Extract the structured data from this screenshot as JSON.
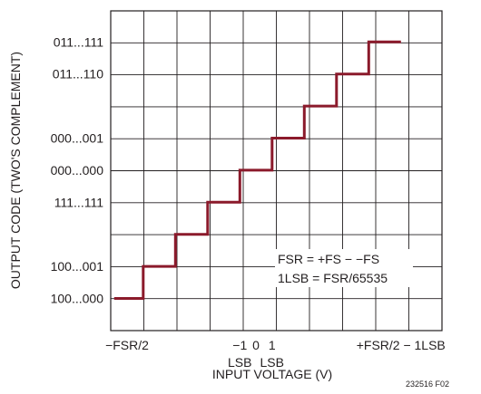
{
  "chart_data": {
    "type": "line",
    "step": true,
    "grid": true,
    "xlabel": "INPUT VOLTAGE (V)",
    "ylabel": "OUTPUT CODE (TWO'S COMPLEMENT)",
    "x_ticks": [
      {
        "line1": "−FSR/2",
        "line2": "",
        "pos": 1
      },
      {
        "line1": "−1",
        "line2": "LSB",
        "pos": 4.5
      },
      {
        "line1": "0",
        "line2": "",
        "pos": 5
      },
      {
        "line1": "1",
        "line2": "LSB",
        "pos": 5.5
      },
      {
        "line1": "+FSR/2 − 1LSB",
        "line2": "",
        "pos": 9.5
      }
    ],
    "y_ticks": [
      {
        "label": "100...000",
        "pos": 1
      },
      {
        "label": "100...001",
        "pos": 2
      },
      {
        "label": "111...111",
        "pos": 4
      },
      {
        "label": "000...000",
        "pos": 5
      },
      {
        "label": "000...001",
        "pos": 6
      },
      {
        "label": "011...110",
        "pos": 8
      },
      {
        "label": "011...111",
        "pos": 9
      }
    ],
    "series": [
      {
        "color": "#8b1a2b",
        "points": [
          [
            0.6,
            1
          ],
          [
            1.5,
            1
          ],
          [
            1.5,
            2
          ],
          [
            2.5,
            2
          ],
          [
            2.5,
            3
          ],
          [
            3.5,
            3
          ],
          [
            3.5,
            4
          ],
          [
            4.5,
            4
          ],
          [
            4.5,
            5
          ],
          [
            5.5,
            5
          ],
          [
            5.5,
            6
          ],
          [
            6.5,
            6
          ],
          [
            6.5,
            7
          ],
          [
            7.5,
            7
          ],
          [
            7.5,
            8
          ],
          [
            8.5,
            8
          ],
          [
            8.5,
            9
          ],
          [
            9.5,
            9
          ]
        ]
      }
    ],
    "annotation": {
      "line1": "FSR = +FS − −FS",
      "line2": "1LSB = FSR/65535"
    },
    "figure_id": "232516 F02"
  }
}
